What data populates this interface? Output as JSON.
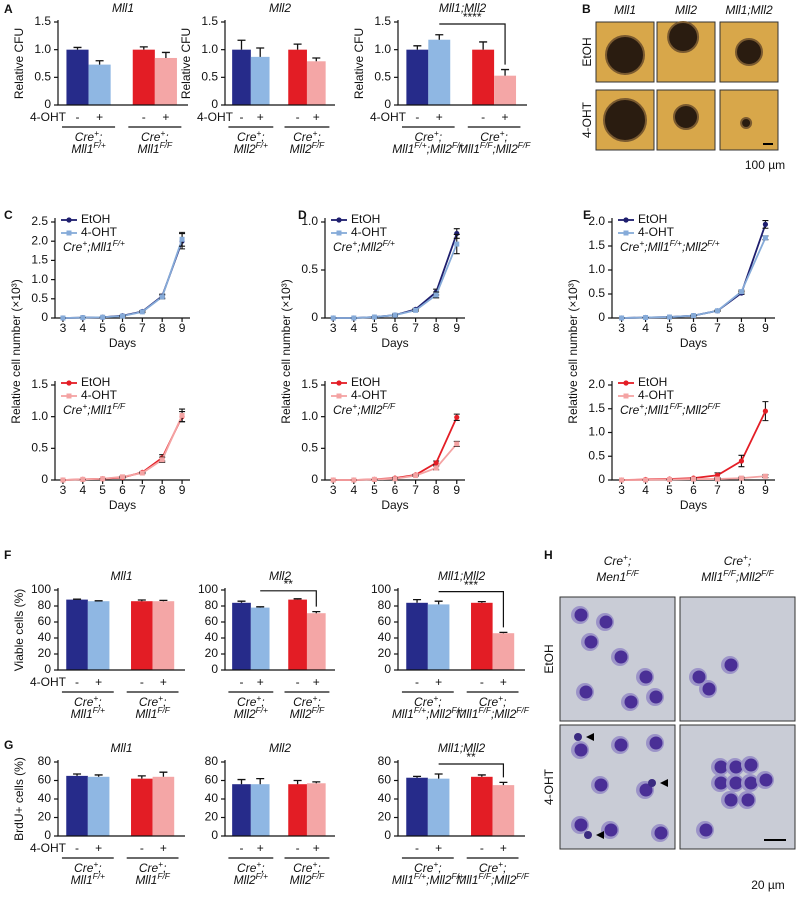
{
  "panel_labels": [
    "A",
    "B",
    "C",
    "D",
    "E",
    "F",
    "G",
    "H"
  ],
  "chart_data": [
    {
      "type": "bar",
      "title": "Mll1",
      "y_label": "Relative CFU",
      "x_label": "4-OHT",
      "categories": [
        "-",
        "+",
        "-",
        "+"
      ],
      "values": [
        1.0,
        0.73,
        1.0,
        0.85
      ],
      "errors": [
        0.04,
        0.07,
        0.05,
        0.1
      ],
      "colors": [
        "#262b8a",
        "#8fb7e3",
        "#e31d25",
        "#f4a6a6"
      ],
      "groups": [
        [
          "Cre+;",
          "Mll1F/+"
        ],
        [
          "Cre+;",
          "Mll1F/F"
        ]
      ],
      "ylim": [
        0,
        1.5
      ],
      "yticks": [
        0,
        0.5,
        {
          "value": 1,
          "label": "1.0"
        },
        1.5
      ]
    },
    {
      "type": "bar",
      "title": "Mll2",
      "y_label": "Relative CFU",
      "x_label": "4-OHT",
      "categories": [
        "-",
        "+",
        "-",
        "+"
      ],
      "values": [
        1.0,
        0.87,
        1.0,
        0.79
      ],
      "errors": [
        0.17,
        0.16,
        0.1,
        0.06
      ],
      "colors": [
        "#262b8a",
        "#8fb7e3",
        "#e31d25",
        "#f4a6a6"
      ],
      "groups": [
        [
          "Cre+;",
          "Mll2F/+"
        ],
        [
          "Cre+;",
          "Mll2F/F"
        ]
      ],
      "ylim": [
        0,
        1.5
      ],
      "yticks": [
        0,
        0.5,
        {
          "value": 1,
          "label": "1.0"
        },
        1.5
      ]
    },
    {
      "type": "bar",
      "title": "Mll1;Mll2",
      "y_label": "Relative CFU",
      "x_label": "4-OHT",
      "categories": [
        "-",
        "+",
        "-",
        "+"
      ],
      "values": [
        1.0,
        1.18,
        1.0,
        0.53
      ],
      "errors": [
        0.07,
        0.09,
        0.14,
        0.11
      ],
      "colors": [
        "#262b8a",
        "#8fb7e3",
        "#e31d25",
        "#f4a6a6"
      ],
      "groups": [
        [
          "Cre+;",
          "Mll1F/+;Mll2F/+"
        ],
        [
          "Cre+;",
          "Mll1F/F;Mll2F/F"
        ]
      ],
      "significance": "****",
      "ylim": [
        0,
        1.5
      ],
      "yticks": [
        0,
        0.5,
        {
          "value": 1,
          "label": "1.0"
        },
        1.5
      ]
    },
    {
      "type": "line",
      "y_label": "Relative cell number (×10³)",
      "x_label": "Days",
      "annotation": "Cre+;Mll1F/+",
      "x": [
        3,
        4,
        5,
        6,
        7,
        8,
        9
      ],
      "xlim": [
        2.6,
        9.4
      ],
      "xticks": [
        3,
        4,
        5,
        6,
        7,
        8,
        9
      ],
      "ylim": [
        0,
        2.5
      ],
      "yticks": [
        0,
        0.5,
        {
          "value": 1,
          "label": "1.0"
        },
        1.5,
        {
          "value": 2,
          "label": "2.0"
        },
        2.5
      ],
      "series": [
        {
          "name": "EtOH",
          "color": "#1e1e6e",
          "values": [
            0,
            0.01,
            0.02,
            0.06,
            0.17,
            0.57,
            2.0
          ],
          "errors": [
            0,
            0,
            0,
            0.01,
            0.02,
            0.05,
            0.2
          ]
        },
        {
          "name": "4-OHT",
          "color": "#86abd9",
          "values": [
            0,
            0.01,
            0.02,
            0.05,
            0.16,
            0.55,
            2.05
          ],
          "errors": [
            0,
            0,
            0,
            0.01,
            0.02,
            0.05,
            0.18
          ]
        }
      ]
    },
    {
      "type": "line",
      "x_label": "Days",
      "annotation": "Cre+;Mll1F/F",
      "x": [
        3,
        4,
        5,
        6,
        7,
        8,
        9
      ],
      "xlim": [
        2.6,
        9.4
      ],
      "xticks": [
        3,
        4,
        5,
        6,
        7,
        8,
        9
      ],
      "ylim": [
        0,
        1.5
      ],
      "yticks": [
        0,
        0.5,
        {
          "value": 1,
          "label": "1.0"
        },
        1.5
      ],
      "series": [
        {
          "name": "EtOH",
          "color": "#e41e26",
          "values": [
            0,
            0.01,
            0.02,
            0.04,
            0.12,
            0.35,
            1.0
          ],
          "errors": [
            0,
            0,
            0,
            0.01,
            0.01,
            0.05,
            0.08
          ]
        },
        {
          "name": "4-OHT",
          "color": "#f4a3a3",
          "values": [
            0,
            0.01,
            0.02,
            0.05,
            0.11,
            0.32,
            1.02
          ],
          "errors": [
            0,
            0,
            0,
            0.01,
            0.01,
            0.04,
            0.1
          ]
        }
      ]
    },
    {
      "type": "line",
      "y_label": "Relative cell number (×10³)",
      "x_label": "Days",
      "annotation": "Cre+;Mll2F/+",
      "x": [
        3,
        4,
        5,
        6,
        7,
        8,
        9
      ],
      "xlim": [
        2.6,
        9.4
      ],
      "xticks": [
        3,
        4,
        5,
        6,
        7,
        8,
        9
      ],
      "ylim": [
        0,
        1.0
      ],
      "yticks": [
        0,
        0.5,
        {
          "value": 1,
          "label": "1.0"
        }
      ],
      "series": [
        {
          "name": "EtOH",
          "color": "#1e1e6e",
          "values": [
            0,
            0,
            0.01,
            0.03,
            0.09,
            0.27,
            0.88
          ],
          "errors": [
            0,
            0,
            0,
            0.01,
            0.01,
            0.03,
            0.05
          ]
        },
        {
          "name": "4-OHT",
          "color": "#86abd9",
          "values": [
            0,
            0,
            0.01,
            0.03,
            0.08,
            0.24,
            0.77
          ],
          "errors": [
            0,
            0,
            0,
            0.01,
            0.01,
            0.03,
            0.1
          ]
        }
      ]
    },
    {
      "type": "line",
      "x_label": "Days",
      "annotation": "Cre+;Mll2F/F",
      "x": [
        3,
        4,
        5,
        6,
        7,
        8,
        9
      ],
      "xlim": [
        2.6,
        9.4
      ],
      "xticks": [
        3,
        4,
        5,
        6,
        7,
        8,
        9
      ],
      "ylim": [
        0,
        1.5
      ],
      "yticks": [
        0,
        0.5,
        {
          "value": 1,
          "label": "1.0"
        },
        1.5
      ],
      "series": [
        {
          "name": "EtOH",
          "color": "#e41e26",
          "values": [
            0,
            0,
            0.01,
            0.03,
            0.08,
            0.27,
            0.99
          ],
          "errors": [
            0,
            0,
            0,
            0.01,
            0.01,
            0.03,
            0.05
          ]
        },
        {
          "name": "4-OHT",
          "color": "#f4a3a3",
          "values": [
            0,
            0,
            0.01,
            0.02,
            0.07,
            0.19,
            0.57
          ],
          "errors": [
            0,
            0,
            0,
            0.01,
            0.01,
            0.03,
            0.04
          ]
        }
      ]
    },
    {
      "type": "line",
      "y_label": "Relative cell number (×10³)",
      "x_label": "Days",
      "annotation": "Cre+;Mll1F/+;Mll2F/+",
      "x": [
        3,
        4,
        5,
        6,
        7,
        8,
        9
      ],
      "xlim": [
        2.6,
        9.4
      ],
      "xticks": [
        3,
        4,
        5,
        6,
        7,
        8,
        9
      ],
      "ylim": [
        0,
        2.0
      ],
      "yticks": [
        0,
        0.5,
        {
          "value": 1,
          "label": "1.0"
        },
        1.5,
        {
          "value": 2,
          "label": "2.0"
        }
      ],
      "series": [
        {
          "name": "EtOH",
          "color": "#1e1e6e",
          "values": [
            0,
            0.01,
            0.02,
            0.05,
            0.15,
            0.52,
            1.95
          ],
          "errors": [
            0,
            0,
            0,
            0.01,
            0.01,
            0.03,
            0.08
          ]
        },
        {
          "name": "4-OHT",
          "color": "#86abd9",
          "values": [
            0,
            0.01,
            0.02,
            0.05,
            0.15,
            0.55,
            1.67
          ],
          "errors": [
            0,
            0,
            0,
            0.01,
            0.01,
            0.03,
            0.04
          ]
        }
      ]
    },
    {
      "type": "line",
      "x_label": "Days",
      "annotation": "Cre+;Mll1F/F;Mll2F/F",
      "x": [
        3,
        4,
        5,
        6,
        7,
        8,
        9
      ],
      "xlim": [
        2.6,
        9.4
      ],
      "xticks": [
        3,
        4,
        5,
        6,
        7,
        8,
        9
      ],
      "ylim": [
        0,
        2.0
      ],
      "yticks": [
        0,
        0.5,
        {
          "value": 1,
          "label": "1.0"
        },
        1.5,
        {
          "value": 2,
          "label": "2.0"
        }
      ],
      "series": [
        {
          "name": "EtOH",
          "color": "#e41e26",
          "values": [
            0,
            0.01,
            0.02,
            0.04,
            0.1,
            0.4,
            1.45
          ],
          "errors": [
            0,
            0,
            0,
            0.01,
            0.05,
            0.12,
            0.2
          ]
        },
        {
          "name": "4-OHT",
          "color": "#f4a3a3",
          "values": [
            0,
            0,
            0.01,
            0.02,
            0.02,
            0.04,
            0.08
          ],
          "errors": [
            0,
            0,
            0,
            0.01,
            0.01,
            0.02,
            0.03
          ]
        }
      ]
    },
    {
      "type": "bar",
      "title": "Mll1",
      "y_label": "Viable cells (%)",
      "x_label": "4-OHT",
      "categories": [
        "-",
        "+",
        "-",
        "+"
      ],
      "values": [
        88,
        86,
        86,
        86
      ],
      "errors": [
        0.5,
        0.5,
        1.5,
        1
      ],
      "colors": [
        "#262b8a",
        "#8fb7e3",
        "#e31d25",
        "#f4a6a6"
      ],
      "groups": [
        [
          "Cre+;",
          "Mll1F/+"
        ],
        [
          "Cre+;",
          "Mll1F/F"
        ]
      ],
      "ylim": [
        0,
        100
      ],
      "yticks": [
        0,
        20,
        40,
        60,
        80,
        100
      ]
    },
    {
      "type": "bar",
      "title": "Mll2",
      "categories": [
        "-",
        "+",
        "-",
        "+"
      ],
      "values": [
        84,
        78,
        88,
        71
      ],
      "errors": [
        2,
        1,
        1,
        2
      ],
      "colors": [
        "#262b8a",
        "#8fb7e3",
        "#e31d25",
        "#f4a6a6"
      ],
      "groups": [
        [
          "Cre+;",
          "Mll2F/+"
        ],
        [
          "Cre+;",
          "Mll2F/F"
        ]
      ],
      "significance": "**",
      "ylim": [
        0,
        100
      ],
      "yticks": [
        0,
        20,
        40,
        60,
        80,
        100
      ]
    },
    {
      "type": "bar",
      "title": "Mll1;Mll2",
      "categories": [
        "-",
        "+",
        "-",
        "+"
      ],
      "values": [
        84,
        82,
        84,
        46
      ],
      "errors": [
        4,
        4,
        1.5,
        1
      ],
      "colors": [
        "#262b8a",
        "#8fb7e3",
        "#e31d25",
        "#f4a6a6"
      ],
      "groups": [
        [
          "Cre+;",
          "Mll1F/+;Mll2F/+"
        ],
        [
          "Cre+;",
          "Mll1F/F;Mll2F/F"
        ]
      ],
      "significance": "***",
      "ylim": [
        0,
        100
      ],
      "yticks": [
        0,
        20,
        40,
        60,
        80,
        100
      ]
    },
    {
      "type": "bar",
      "title": "Mll1",
      "y_label": "BrdU+ cells (%)",
      "x_label": "4-OHT",
      "categories": [
        "-",
        "+",
        "-",
        "+"
      ],
      "values": [
        65,
        64,
        62,
        64
      ],
      "errors": [
        2,
        2,
        3,
        5
      ],
      "colors": [
        "#262b8a",
        "#8fb7e3",
        "#e31d25",
        "#f4a6a6"
      ],
      "groups": [
        [
          "Cre+;",
          "Mll1F/+"
        ],
        [
          "Cre+;",
          "Mll1F/F"
        ]
      ],
      "ylim": [
        0,
        80
      ],
      "yticks": [
        0,
        20,
        40,
        60,
        80
      ]
    },
    {
      "type": "bar",
      "title": "Mll2",
      "categories": [
        "-",
        "+",
        "-",
        "+"
      ],
      "values": [
        56,
        56,
        56,
        57
      ],
      "errors": [
        5,
        6,
        4,
        1.5
      ],
      "colors": [
        "#262b8a",
        "#8fb7e3",
        "#e31d25",
        "#f4a6a6"
      ],
      "groups": [
        [
          "Cre+;",
          "Mll2F/+"
        ],
        [
          "Cre+;",
          "Mll2F/F"
        ]
      ],
      "ylim": [
        0,
        80
      ],
      "yticks": [
        0,
        20,
        40,
        60,
        80
      ]
    },
    {
      "type": "bar",
      "title": "Mll1;Mll2",
      "categories": [
        "-",
        "+",
        "-",
        "+"
      ],
      "values": [
        63,
        62,
        64,
        55
      ],
      "errors": [
        1.5,
        5,
        2,
        3
      ],
      "colors": [
        "#262b8a",
        "#8fb7e3",
        "#e31d25",
        "#f4a6a6"
      ],
      "groups": [
        [
          "Cre+;",
          "Mll1F/+;Mll2F/+"
        ],
        [
          "Cre+;",
          "Mll1F/F;Mll2F/F"
        ]
      ],
      "significance": "**",
      "ylim": [
        0,
        80
      ],
      "yticks": [
        0,
        20,
        40,
        60,
        80
      ]
    }
  ],
  "images": [
    {
      "columns": [
        "Mll1",
        "Mll2",
        "Mll1;Mll2"
      ],
      "rows": [
        "EtOH",
        "4-OHT"
      ],
      "scale": "100 µm"
    },
    {
      "columns": [
        [
          "Cre+;",
          "Men1F/F"
        ],
        [
          "Cre+;",
          "Mll1F/F;Mll2F/F"
        ]
      ],
      "rows": [
        "EtOH",
        "4-OHT"
      ],
      "scale": "20 µm"
    }
  ]
}
